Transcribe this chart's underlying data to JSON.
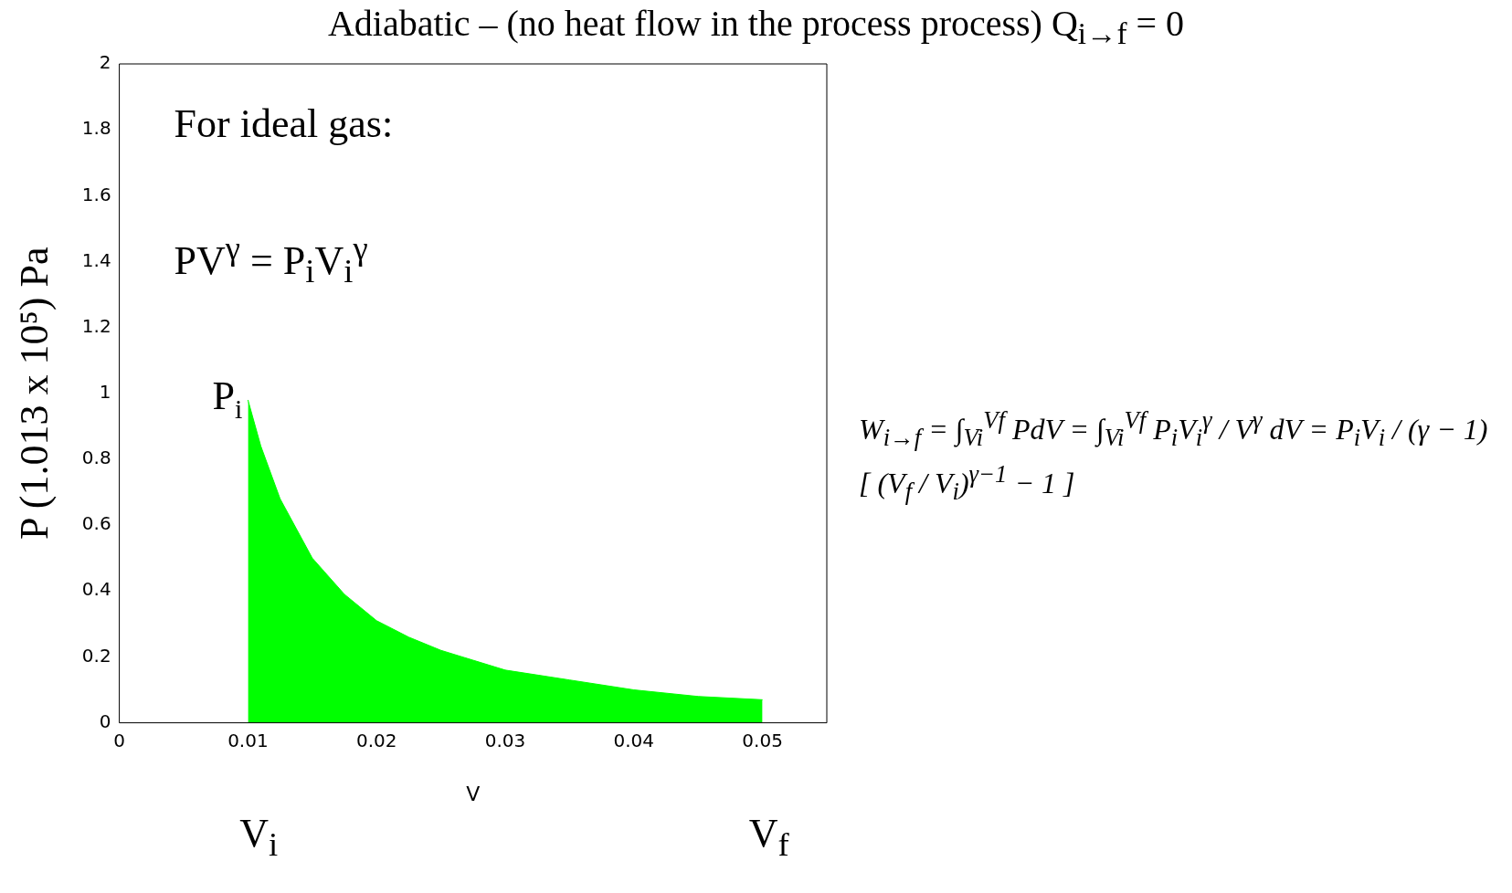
{
  "chart_data": {
    "type": "area",
    "title": "Adiabatic – (no heat flow in the process process) Q$_{i→f}$ = 0",
    "xlabel": "V",
    "ylabel": "P (1.013 x 10⁵) Pa",
    "x": [
      0.01,
      0.011,
      0.0125,
      0.015,
      0.0175,
      0.02,
      0.0225,
      0.025,
      0.0275,
      0.03,
      0.035,
      0.04,
      0.045,
      0.05
    ],
    "series": [
      {
        "color": "#00ff00",
        "values": [
          0.98,
          0.84,
          0.68,
          0.5,
          0.39,
          0.31,
          0.26,
          0.22,
          0.19,
          0.16,
          0.13,
          0.1,
          0.08,
          0.07
        ]
      }
    ],
    "xlim": [
      0,
      0.055
    ],
    "xticks": [
      0,
      0.01,
      0.02,
      0.03,
      0.04,
      0.05
    ],
    "ylim": [
      0,
      2
    ],
    "yticks": [
      0,
      0.2,
      0.4,
      0.6,
      0.8,
      1,
      1.2,
      1.4,
      1.6,
      1.8,
      2
    ],
    "grid": false,
    "legend": false,
    "annotations": [
      "For ideal gas:",
      "PV$^{γ}$ = P$_{i}$V$_{i}$$^{γ}$",
      {
        "text": "P$_{i}$",
        "x": 0.01,
        "y": 0.98
      },
      "V$_{i}$",
      "V$_{f}$",
      "W$_{i→f}$ = ∫$_{Vi}$$^{Vf}$ PdV = ∫$_{Vi}$$^{Vf}$ P$_{i}$V$_{i}$$^{γ}$ / V$^{γ}$ dV = P$_{i}$V$_{i}$ / (γ − 1) [ (V$_{f}$ / V$_{i}$)$^{γ−1}$ − 1 ]"
    ]
  }
}
